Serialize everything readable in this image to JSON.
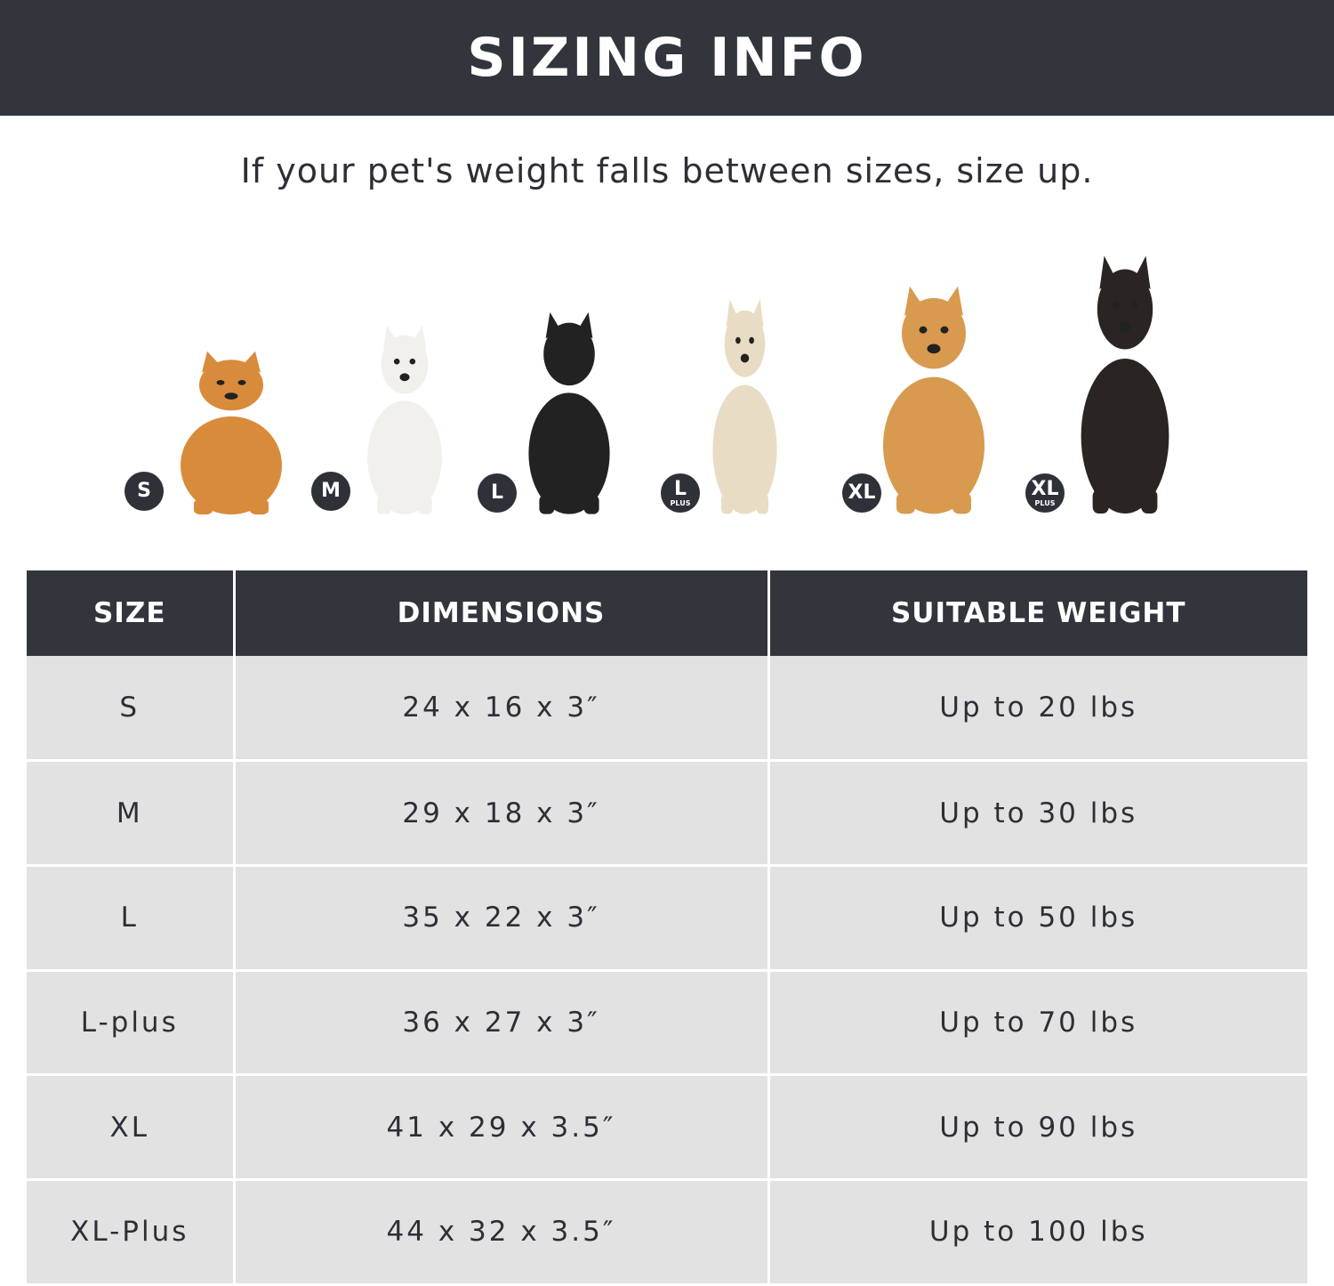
{
  "banner": {
    "title": "SIZING INFO"
  },
  "subtitle": "If your pet's weight falls between sizes, size up.",
  "colors": {
    "header": "#33353d",
    "row": "#e2e2e2",
    "badge": "#2f3139"
  },
  "dogs": [
    {
      "badge": "S",
      "plus": "",
      "color": "#d98b3c",
      "breed_icon": "pomeranian-icon"
    },
    {
      "badge": "M",
      "plus": "",
      "color": "#f2f0ec",
      "breed_icon": "french-bulldog-icon"
    },
    {
      "badge": "L",
      "plus": "",
      "color": "#222222",
      "breed_icon": "border-collie-icon"
    },
    {
      "badge": "L",
      "plus": "PLUS",
      "color": "#e9dcc4",
      "breed_icon": "labrador-icon"
    },
    {
      "badge": "XL",
      "plus": "",
      "color": "#d89a4e",
      "breed_icon": "golden-retriever-icon"
    },
    {
      "badge": "XL",
      "plus": "PLUS",
      "color": "#2a2422",
      "breed_icon": "doberman-icon"
    }
  ],
  "table": {
    "headers": [
      "SIZE",
      "DIMENSIONS",
      "SUITABLE WEIGHT"
    ],
    "rows": [
      [
        "S",
        "24 x 16 x 3″",
        "Up to 20 lbs"
      ],
      [
        "M",
        "29 x 18 x 3″",
        "Up to 30 lbs"
      ],
      [
        "L",
        "35 x 22 x 3″",
        "Up to 50 lbs"
      ],
      [
        "L-plus",
        "36 x 27 x 3″",
        "Up to 70 lbs"
      ],
      [
        "XL",
        "41 x 29 x 3.5″",
        "Up to 90 lbs"
      ],
      [
        "XL-Plus",
        "44 x 32 x 3.5″",
        "Up to 100 lbs"
      ]
    ]
  }
}
